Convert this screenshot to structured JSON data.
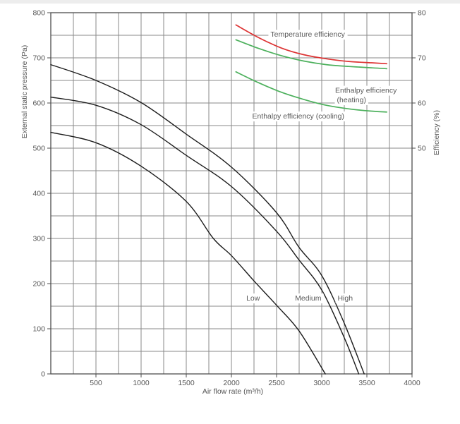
{
  "page": {
    "background": "#ffffff",
    "top_strip_color": "#ededed"
  },
  "colors": {
    "grid": "#8a8a8a",
    "border": "#4d4d4d",
    "fan_curve": "#1c1c1c",
    "temperature_curve": "#dd3333",
    "enthalpy_curve": "#4cb05c",
    "text": "#585858",
    "label_background": "#ffffff"
  },
  "chart_data": {
    "type": "line",
    "title": "",
    "x_axis": {
      "label": "Air flow rate (m³/h)",
      "min": 0,
      "max": 4000,
      "grid_step": 250,
      "ticks": [
        500,
        1000,
        1500,
        2000,
        2500,
        3000,
        3500,
        4000
      ]
    },
    "y_left_axis": {
      "label": "External static pressure (Pa)",
      "min": 0,
      "max": 800,
      "grid_step": 50,
      "ticks": [
        0,
        100,
        200,
        300,
        400,
        500,
        600,
        700,
        800
      ]
    },
    "y_right_axis": {
      "label": "Efficiency (%)",
      "min": 0,
      "max": 80,
      "ticks": [
        50,
        60,
        70,
        80
      ]
    },
    "legend_position": "labels-on-chart",
    "grid": true,
    "series": [
      {
        "name": "fan-low",
        "label": "Low",
        "axis": "left",
        "color": "#1c1c1c",
        "width": 1.4,
        "points": [
          [
            0,
            535
          ],
          [
            500,
            512
          ],
          [
            1000,
            460
          ],
          [
            1500,
            382
          ],
          [
            1800,
            300
          ],
          [
            2000,
            262
          ],
          [
            2250,
            206
          ],
          [
            2500,
            152
          ],
          [
            2750,
            95
          ],
          [
            3040,
            0
          ]
        ]
      },
      {
        "name": "fan-medium",
        "label": "Medium",
        "axis": "left",
        "color": "#1c1c1c",
        "width": 1.4,
        "points": [
          [
            0,
            613
          ],
          [
            500,
            595
          ],
          [
            1000,
            552
          ],
          [
            1500,
            484
          ],
          [
            2000,
            415
          ],
          [
            2500,
            316
          ],
          [
            2750,
            252
          ],
          [
            3000,
            186
          ],
          [
            3250,
            80
          ],
          [
            3410,
            0
          ]
        ]
      },
      {
        "name": "fan-high",
        "label": "High",
        "axis": "left",
        "color": "#1c1c1c",
        "width": 1.4,
        "points": [
          [
            0,
            685
          ],
          [
            500,
            650
          ],
          [
            1000,
            601
          ],
          [
            1500,
            531
          ],
          [
            2000,
            458
          ],
          [
            2500,
            357
          ],
          [
            2750,
            280
          ],
          [
            3000,
            218
          ],
          [
            3250,
            112
          ],
          [
            3470,
            0
          ]
        ]
      },
      {
        "name": "temperature-efficiency",
        "label": "Temperature efficiency",
        "axis": "right",
        "color": "#dd3333",
        "width": 1.7,
        "points": [
          [
            2050,
            77.3
          ],
          [
            2300,
            74.5
          ],
          [
            2550,
            72.2
          ],
          [
            2800,
            70.7
          ],
          [
            3050,
            69.8
          ],
          [
            3300,
            69.2
          ],
          [
            3550,
            68.9
          ],
          [
            3720,
            68.7
          ]
        ]
      },
      {
        "name": "enthalpy-efficiency-heating",
        "label": "Enthalpy efficiency (heating)",
        "axis": "right",
        "color": "#4cb05c",
        "width": 1.7,
        "points": [
          [
            2050,
            74.0
          ],
          [
            2300,
            72.1
          ],
          [
            2550,
            70.5
          ],
          [
            2800,
            69.3
          ],
          [
            3050,
            68.5
          ],
          [
            3300,
            68.1
          ],
          [
            3550,
            67.8
          ],
          [
            3720,
            67.6
          ]
        ]
      },
      {
        "name": "enthalpy-efficiency-cooling",
        "label": "Enthalpy efficiency (cooling)",
        "axis": "right",
        "color": "#4cb05c",
        "width": 1.7,
        "points": [
          [
            2050,
            66.9
          ],
          [
            2300,
            64.5
          ],
          [
            2550,
            62.4
          ],
          [
            2800,
            60.8
          ],
          [
            3050,
            59.5
          ],
          [
            3300,
            58.7
          ],
          [
            3550,
            58.2
          ],
          [
            3720,
            58.0
          ]
        ]
      }
    ],
    "curve_labels": [
      {
        "text": "Temperature efficiency",
        "axis": "right",
        "x": 2845,
        "y": 75.2
      },
      {
        "text": "Enthalpy efficiency",
        "axis": "right",
        "x": 3490,
        "y": 62.8
      },
      {
        "text": "(heating)",
        "axis": "right",
        "x": 3330,
        "y": 60.7
      },
      {
        "text": "Enthalpy efficiency (cooling)",
        "axis": "right",
        "x": 2740,
        "y": 57.1
      },
      {
        "text": "Low",
        "axis": "left",
        "x": 2240,
        "y": 168
      },
      {
        "text": "Medium",
        "axis": "left",
        "x": 2850,
        "y": 168
      },
      {
        "text": "High",
        "axis": "left",
        "x": 3260,
        "y": 168
      }
    ]
  }
}
